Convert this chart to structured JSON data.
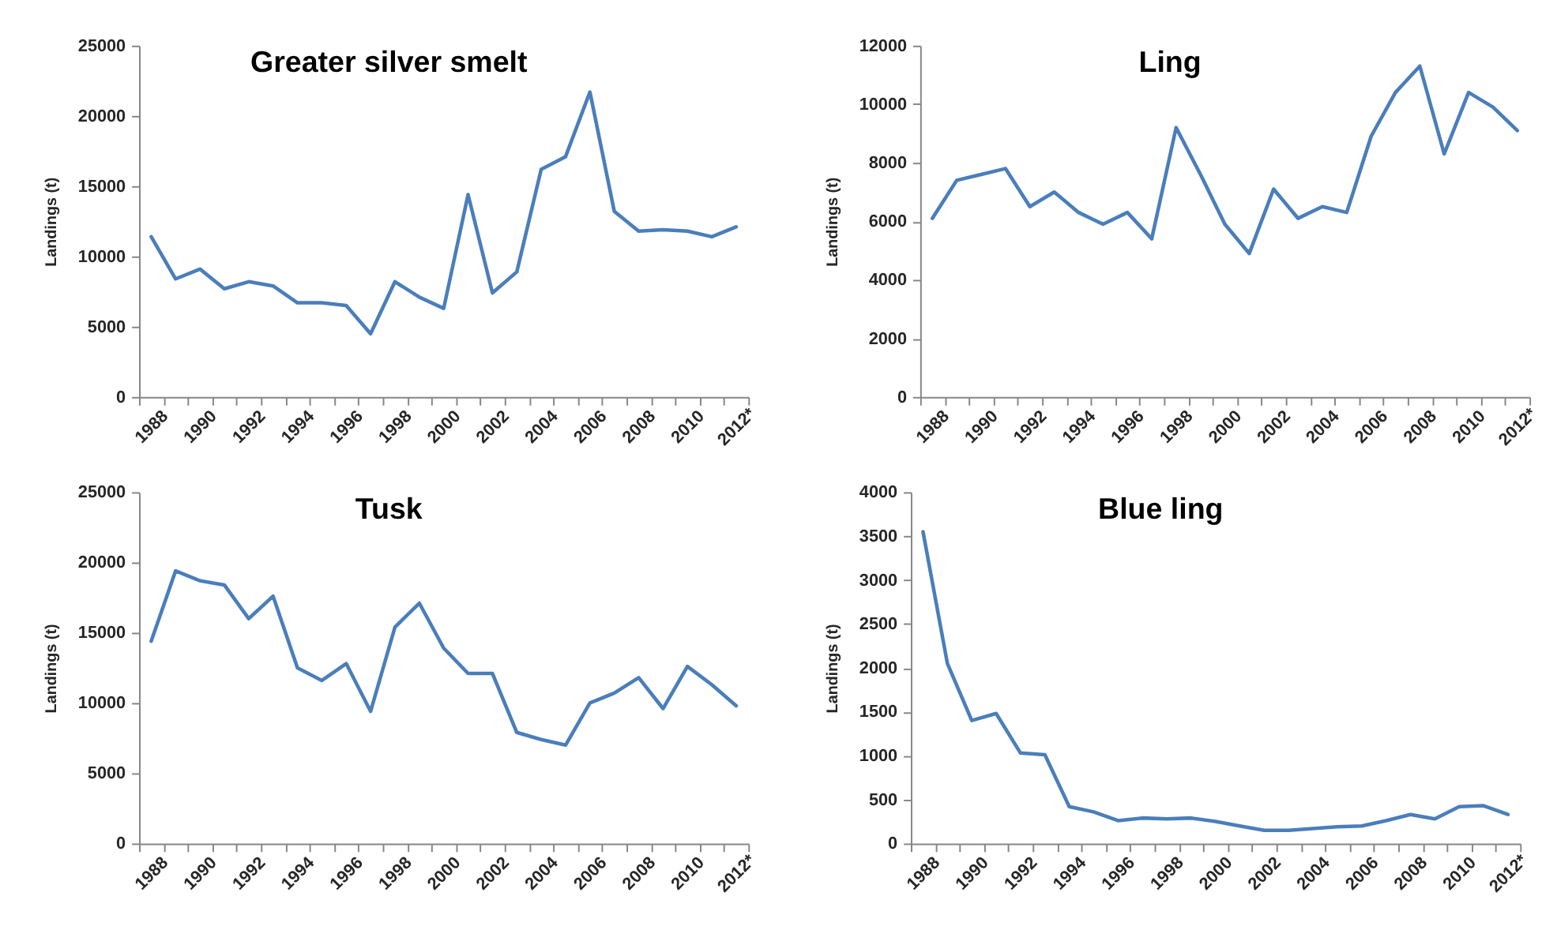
{
  "chart_data": [
    {
      "type": "line",
      "title": "Greater silver smelt",
      "ylabel": "Landings (t)",
      "categories": [
        "1988",
        null,
        "1990",
        null,
        "1992",
        null,
        "1994",
        null,
        "1996",
        null,
        "1998",
        null,
        "2000",
        null,
        "2002",
        null,
        "2004",
        null,
        "2006",
        null,
        "2008",
        null,
        "2010",
        null,
        "2012*"
      ],
      "series": [
        {
          "color": "#4a7ebb",
          "values": [
            11400,
            8400,
            9100,
            7700,
            8200,
            7900,
            6700,
            6700,
            6500,
            4500,
            8200,
            7100,
            6300,
            14400,
            7400,
            8900,
            16200,
            17100,
            21700,
            13200,
            11800,
            11900,
            11800,
            11400,
            12100
          ]
        }
      ],
      "ylim": [
        0,
        25000
      ],
      "yticks": [
        0,
        5000,
        10000,
        15000,
        20000,
        25000
      ]
    },
    {
      "type": "line",
      "title": "Ling",
      "ylabel": "Landings (t)",
      "categories": [
        "1988",
        null,
        "1990",
        null,
        "1992",
        null,
        "1994",
        null,
        "1996",
        null,
        "1998",
        null,
        "2000",
        null,
        "2002",
        null,
        "2004",
        null,
        "2006",
        null,
        "2008",
        null,
        "2010",
        null,
        "2012*"
      ],
      "series": [
        {
          "color": "#4a7ebb",
          "values": [
            6100,
            7400,
            7600,
            7800,
            6500,
            7000,
            6300,
            5900,
            6300,
            5400,
            9200,
            7600,
            5900,
            4900,
            7100,
            6100,
            6500,
            6300,
            8900,
            10400,
            11300,
            8300,
            10400,
            9900,
            9100
          ]
        }
      ],
      "ylim": [
        0,
        12000
      ],
      "yticks": [
        0,
        2000,
        4000,
        6000,
        8000,
        10000,
        12000
      ]
    },
    {
      "type": "line",
      "title": "Tusk",
      "ylabel": "Landings (t)",
      "categories": [
        "1988",
        null,
        "1990",
        null,
        "1992",
        null,
        "1994",
        null,
        "1996",
        null,
        "1998",
        null,
        "2000",
        null,
        "2002",
        null,
        "2004",
        null,
        "2006",
        null,
        "2008",
        null,
        "2010",
        null,
        "2012*"
      ],
      "series": [
        {
          "color": "#4a7ebb",
          "values": [
            14400,
            19400,
            18700,
            18400,
            16000,
            17600,
            12500,
            11600,
            12800,
            9400,
            15400,
            17100,
            13900,
            12100,
            12100,
            7900,
            7400,
            7000,
            10000,
            10700,
            11800,
            9600,
            12600,
            11300,
            9800
          ]
        }
      ],
      "ylim": [
        0,
        25000
      ],
      "yticks": [
        0,
        5000,
        10000,
        15000,
        20000,
        25000
      ]
    },
    {
      "type": "line",
      "title": "Blue ling",
      "ylabel": "Landings (t)",
      "categories": [
        "1988",
        null,
        "1990",
        null,
        "1992",
        null,
        "1994",
        null,
        "1996",
        null,
        "1998",
        null,
        "2000",
        null,
        "2002",
        null,
        "2004",
        null,
        "2006",
        null,
        "2008",
        null,
        "2010",
        null,
        "2012*"
      ],
      "series": [
        {
          "color": "#4a7ebb",
          "values": [
            3550,
            2050,
            1400,
            1480,
            1030,
            1010,
            420,
            360,
            260,
            290,
            280,
            290,
            250,
            200,
            150,
            150,
            170,
            190,
            200,
            260,
            330,
            280,
            420,
            430,
            330
          ]
        }
      ],
      "ylim": [
        0,
        4000
      ],
      "yticks": [
        0,
        500,
        1000,
        1500,
        2000,
        2500,
        3000,
        3500,
        4000
      ]
    }
  ]
}
